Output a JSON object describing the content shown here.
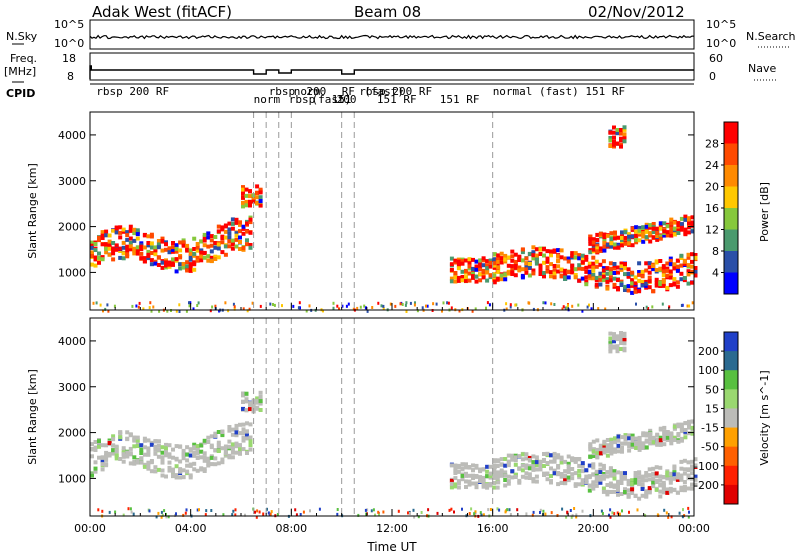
{
  "header": {
    "station": "Adak West (fitACF)",
    "beam": "Beam 08",
    "date": "02/Nov/2012"
  },
  "strip_labels": {
    "nsky": "N.Sky",
    "nsearch": "N.Search",
    "freq_line1": "Freq.",
    "freq_line2": "[MHz]",
    "nave": "Nave",
    "cpid": "CPID",
    "nsky_ticks": [
      "10^5",
      "10^0"
    ],
    "nsearch_ticks": [
      "10^5",
      "10^0"
    ],
    "freq_ticks": [
      "18",
      "8"
    ],
    "nave_ticks": [
      "60",
      "0"
    ]
  },
  "cpid_labels": [
    {
      "text": "rbsp 200 RF",
      "hour": 0.25
    },
    {
      "text": "normal (fast) 151 RF",
      "hour": 16.0
    },
    {
      "text": "norm",
      "hour": 6.5
    },
    {
      "text": "rbsp",
      "hour": 7.1
    },
    {
      "text": "rbsp",
      "hour": 7.9
    },
    {
      "text": "norm",
      "hour": 8.1
    },
    {
      "text": "(fast)",
      "hour": 8.8
    },
    {
      "text": "200",
      "hour": 8.6
    },
    {
      "text": "151",
      "hour": 9.6
    },
    {
      "text": "RF",
      "hour": 10.0
    },
    {
      "text": "200",
      "hour": 9.8
    },
    {
      "text": "rbsp 200 RF",
      "hour": 10.7
    },
    {
      "text": "151 RF",
      "hour": 11.4
    },
    {
      "text": "(fast)",
      "hour": 10.9
    },
    {
      "text": "151 RF",
      "hour": 13.9
    }
  ],
  "chart_data": [
    {
      "type": "heatmap",
      "ylabel": "Slant Range [km]",
      "xlabel": "",
      "x_range_hours": [
        0,
        24
      ],
      "ylim": [
        180,
        4500
      ],
      "y_ticks": [
        1000,
        2000,
        3000,
        4000
      ],
      "colorbar": {
        "label": "Power [dB]",
        "ticks": [
          "28",
          "24",
          "20",
          "16",
          "12",
          "8",
          "4"
        ],
        "colors": [
          "#ff0000",
          "#ff4a00",
          "#ff8a00",
          "#ffc800",
          "#86c83c",
          "#4a9a6e",
          "#2a4fa8",
          "#0000ff"
        ]
      },
      "cpid_change_hours": [
        6.5,
        7.0,
        7.5,
        8.0,
        10.0,
        10.5,
        16.0
      ]
    },
    {
      "type": "heatmap",
      "ylabel": "Slant Range [km]",
      "xlabel": "Time UT",
      "x_range_hours": [
        0,
        24
      ],
      "x_tick_labels": [
        "00:00",
        "04:00",
        "08:00",
        "12:00",
        "16:00",
        "20:00",
        "00:00"
      ],
      "ylim": [
        180,
        4500
      ],
      "y_ticks": [
        1000,
        2000,
        3000,
        4000
      ],
      "colorbar": {
        "label": "Velocity [m s^-1]",
        "ticks": [
          "200",
          "100",
          "50",
          "15",
          "-15",
          "-50",
          "-100",
          "-200"
        ],
        "colors": [
          "#2040c8",
          "#2a6a90",
          "#58c040",
          "#9ad870",
          "#bcbcb8",
          "#ffa000",
          "#ff6000",
          "#ff2000",
          "#e00000"
        ]
      },
      "cpid_change_hours": [
        6.5,
        7.0,
        7.5,
        8.0,
        10.0,
        10.5,
        16.0
      ]
    }
  ]
}
